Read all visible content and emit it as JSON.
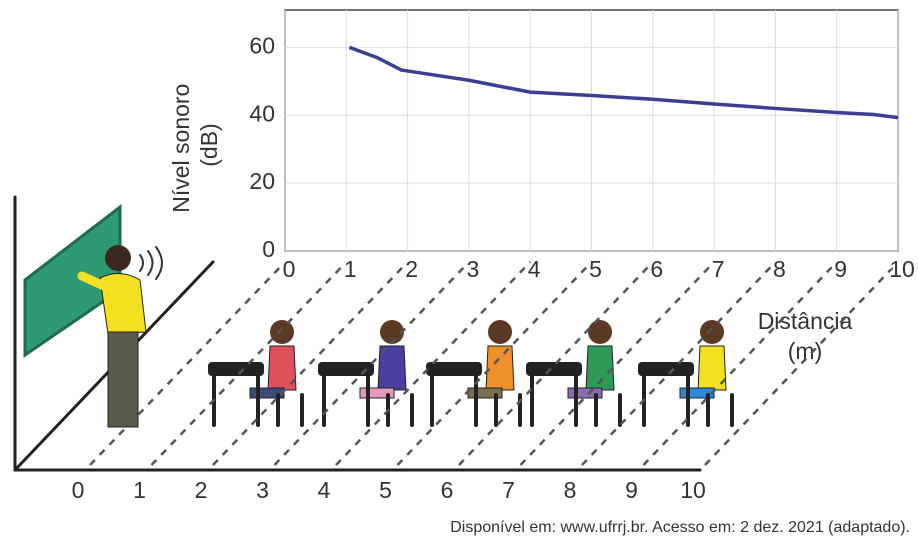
{
  "chart_data": {
    "type": "line",
    "ylabel": [
      "Nível sonoro",
      "(dB)"
    ],
    "xlabel": [
      "Distância",
      "(m)"
    ],
    "xlim": [
      0,
      10
    ],
    "xticks": [
      0,
      1,
      2,
      3,
      4,
      5,
      6,
      7,
      8,
      9,
      10
    ],
    "ylim": [
      0,
      71
    ],
    "yticks": [
      0,
      20,
      40,
      60
    ],
    "grid": true,
    "series": [
      {
        "color": "#3b3f8f",
        "x": [
          1.05,
          1.5,
          1.9,
          3,
          4,
          5,
          6,
          7,
          8,
          9,
          9.6,
          10
        ],
        "values": [
          60,
          57,
          53.3,
          50.3,
          46.8,
          45.8,
          44.7,
          43.3,
          42,
          40.8,
          40.2,
          39.3
        ]
      }
    ]
  },
  "illustration": {
    "floor_ticks": [
      0,
      1,
      2,
      3,
      4,
      5,
      6,
      7,
      8,
      9,
      10
    ]
  },
  "source": "Disponível em: www.ufrrj.br. Acesso em: 2 dez. 2021 (adaptado)."
}
